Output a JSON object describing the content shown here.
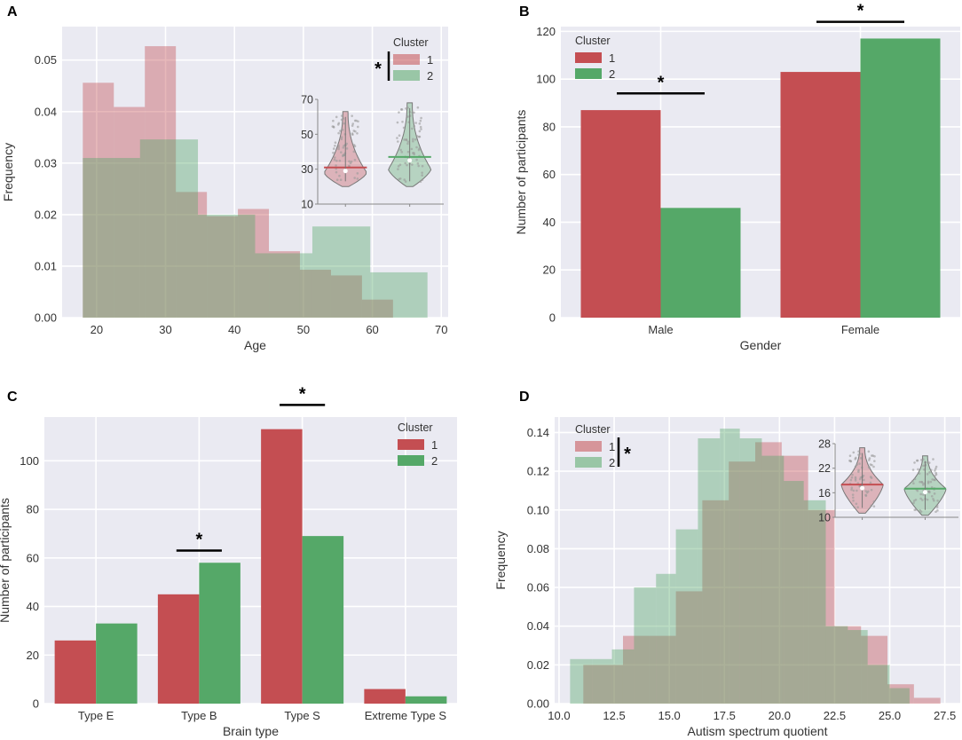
{
  "colors": {
    "cluster1": "#c44e52",
    "cluster2": "#55a868",
    "plot_bg": "#eaeaf2",
    "grid": "#ffffff",
    "text": "#333333"
  },
  "chart_data": [
    {
      "id": "A",
      "panel_label": "A",
      "type": "histogram",
      "title": "",
      "xlabel": "Age",
      "ylabel": "Frequency",
      "xlim": [
        15,
        71
      ],
      "ylim": [
        0,
        0.0565
      ],
      "xticks": [
        20,
        30,
        40,
        50,
        60,
        70
      ],
      "xtick_labels": [
        "20",
        "30",
        "40",
        "50",
        "60",
        "70"
      ],
      "yticks": [
        0,
        0.01,
        0.02,
        0.03,
        0.04,
        0.05
      ],
      "ytick_labels": [
        "0.00",
        "0.01",
        "0.02",
        "0.03",
        "0.04",
        "0.05"
      ],
      "series": [
        {
          "name": "1",
          "bins": [
            [
              18,
              22.5,
              0.0456
            ],
            [
              22.5,
              27,
              0.0409
            ],
            [
              27,
              31.5,
              0.0527
            ],
            [
              31.5,
              36,
              0.0244
            ],
            [
              36,
              40.5,
              0.0197
            ],
            [
              40.5,
              45,
              0.0211
            ],
            [
              45,
              49.5,
              0.0129
            ],
            [
              49.5,
              54,
              0.0093
            ],
            [
              54,
              58.5,
              0.0082
            ],
            [
              58.5,
              63,
              0.0035
            ]
          ]
        },
        {
          "name": "2",
          "bins": [
            [
              18,
              26.3,
              0.031
            ],
            [
              26.3,
              34.7,
              0.0346
            ],
            [
              34.7,
              43,
              0.02
            ],
            [
              43,
              51.3,
              0.0125
            ],
            [
              51.3,
              59.7,
              0.0177
            ],
            [
              59.7,
              68,
              0.0088
            ]
          ]
        }
      ],
      "legend": {
        "title": "Cluster",
        "labels": [
          "1",
          "2"
        ],
        "position": "top-right"
      },
      "significance": "*",
      "inset": {
        "type": "violin",
        "yticks": [
          10,
          30,
          50,
          70
        ],
        "ytick_labels": [
          "10",
          "30",
          "50",
          "70"
        ],
        "ylim": [
          10,
          70
        ],
        "groups": [
          {
            "name": "1",
            "min": 20,
            "max": 63,
            "median": 31,
            "mode": 28
          },
          {
            "name": "2",
            "min": 20,
            "max": 68,
            "median": 37,
            "mode": 30
          }
        ]
      }
    },
    {
      "id": "B",
      "panel_label": "B",
      "type": "bar",
      "title": "",
      "xlabel": "Gender",
      "ylabel": "Number of participants",
      "categories": [
        "Male",
        "Female"
      ],
      "series": [
        {
          "name": "1",
          "values": [
            87,
            103
          ]
        },
        {
          "name": "2",
          "values": [
            46,
            117
          ]
        }
      ],
      "ylim": [
        0,
        122
      ],
      "yticks": [
        0,
        20,
        40,
        60,
        80,
        100,
        120
      ],
      "ytick_labels": [
        "0",
        "20",
        "40",
        "60",
        "80",
        "100",
        "120"
      ],
      "legend": {
        "title": "Cluster",
        "labels": [
          "1",
          "2"
        ],
        "position": "top-left"
      },
      "significance": [
        {
          "category": "Male",
          "label": "*",
          "level": 94
        },
        {
          "category": "Female",
          "label": "*",
          "level": 124
        }
      ]
    },
    {
      "id": "C",
      "panel_label": "C",
      "type": "bar",
      "title": "",
      "xlabel": "Brain type",
      "ylabel": "Number of participants",
      "categories": [
        "Type E",
        "Type B",
        "Type S",
        "Extreme Type S"
      ],
      "series": [
        {
          "name": "1",
          "values": [
            26,
            45,
            113,
            6
          ]
        },
        {
          "name": "2",
          "values": [
            33,
            58,
            69,
            3
          ]
        }
      ],
      "ylim": [
        0,
        118
      ],
      "yticks": [
        0,
        20,
        40,
        60,
        80,
        100
      ],
      "ytick_labels": [
        "0",
        "20",
        "40",
        "60",
        "80",
        "100"
      ],
      "legend": {
        "title": "Cluster",
        "labels": [
          "1",
          "2"
        ],
        "position": "top-right"
      },
      "significance": [
        {
          "category": "Type B",
          "label": "*",
          "level": 63
        },
        {
          "category": "Type S",
          "label": "*",
          "level": 123
        }
      ]
    },
    {
      "id": "D",
      "panel_label": "D",
      "type": "histogram",
      "title": "",
      "xlabel": "Autism spectrum quotient",
      "ylabel": "Frequency",
      "xlim": [
        9.8,
        28.2
      ],
      "ylim": [
        0,
        0.148
      ],
      "xticks": [
        10,
        12.5,
        15,
        17.5,
        20,
        22.5,
        25,
        27.5
      ],
      "xtick_labels": [
        "10.0",
        "12.5",
        "15.0",
        "17.5",
        "20.0",
        "22.5",
        "25.0",
        "27.5"
      ],
      "yticks": [
        0,
        0.02,
        0.04,
        0.06,
        0.08,
        0.1,
        0.12,
        0.14
      ],
      "ytick_labels": [
        "0.00",
        "0.02",
        "0.04",
        "0.06",
        "0.08",
        "0.10",
        "0.12",
        "0.14"
      ],
      "series": [
        {
          "name": "1",
          "bins": [
            [
              11.1,
              12.9,
              0.02
            ],
            [
              12.9,
              14.1,
              0.035
            ],
            [
              14.1,
              15.3,
              0.035
            ],
            [
              15.3,
              16.5,
              0.058
            ],
            [
              16.5,
              17.7,
              0.105
            ],
            [
              17.7,
              18.9,
              0.125
            ],
            [
              18.9,
              20.1,
              0.135
            ],
            [
              20.1,
              21.3,
              0.128
            ],
            [
              21.3,
              22.5,
              0.1
            ],
            [
              22.5,
              23.7,
              0.04
            ],
            [
              23.7,
              24.9,
              0.035
            ],
            [
              24.9,
              26.1,
              0.01
            ],
            [
              26.1,
              27.3,
              0.003
            ]
          ]
        },
        {
          "name": "2",
          "bins": [
            [
              10.5,
              11.5,
              0.023
            ],
            [
              11.5,
              12.4,
              0.023
            ],
            [
              12.4,
              13.4,
              0.028
            ],
            [
              13.4,
              14.4,
              0.06
            ],
            [
              14.4,
              15.3,
              0.067
            ],
            [
              15.3,
              16.3,
              0.09
            ],
            [
              16.3,
              17.3,
              0.137
            ],
            [
              17.3,
              18.2,
              0.142
            ],
            [
              18.2,
              19.2,
              0.137
            ],
            [
              19.2,
              20.2,
              0.128
            ],
            [
              20.2,
              21.1,
              0.115
            ],
            [
              21.1,
              22.1,
              0.105
            ],
            [
              22.1,
              23.1,
              0.04
            ],
            [
              23.1,
              24.0,
              0.038
            ],
            [
              24.0,
              25.0,
              0.02
            ],
            [
              25.0,
              25.9,
              0.008
            ]
          ]
        }
      ],
      "legend": {
        "title": "Cluster",
        "labels": [
          "1",
          "2"
        ],
        "position": "top-left"
      },
      "significance": "*",
      "inset": {
        "type": "violin",
        "yticks": [
          10,
          16,
          22,
          28
        ],
        "ytick_labels": [
          "10",
          "16",
          "22",
          "28"
        ],
        "ylim": [
          10,
          28
        ],
        "groups": [
          {
            "name": "1",
            "min": 11,
            "max": 27,
            "median": 18,
            "mode": 18
          },
          {
            "name": "2",
            "min": 10.5,
            "max": 25,
            "median": 17,
            "mode": 17
          }
        ]
      }
    }
  ]
}
